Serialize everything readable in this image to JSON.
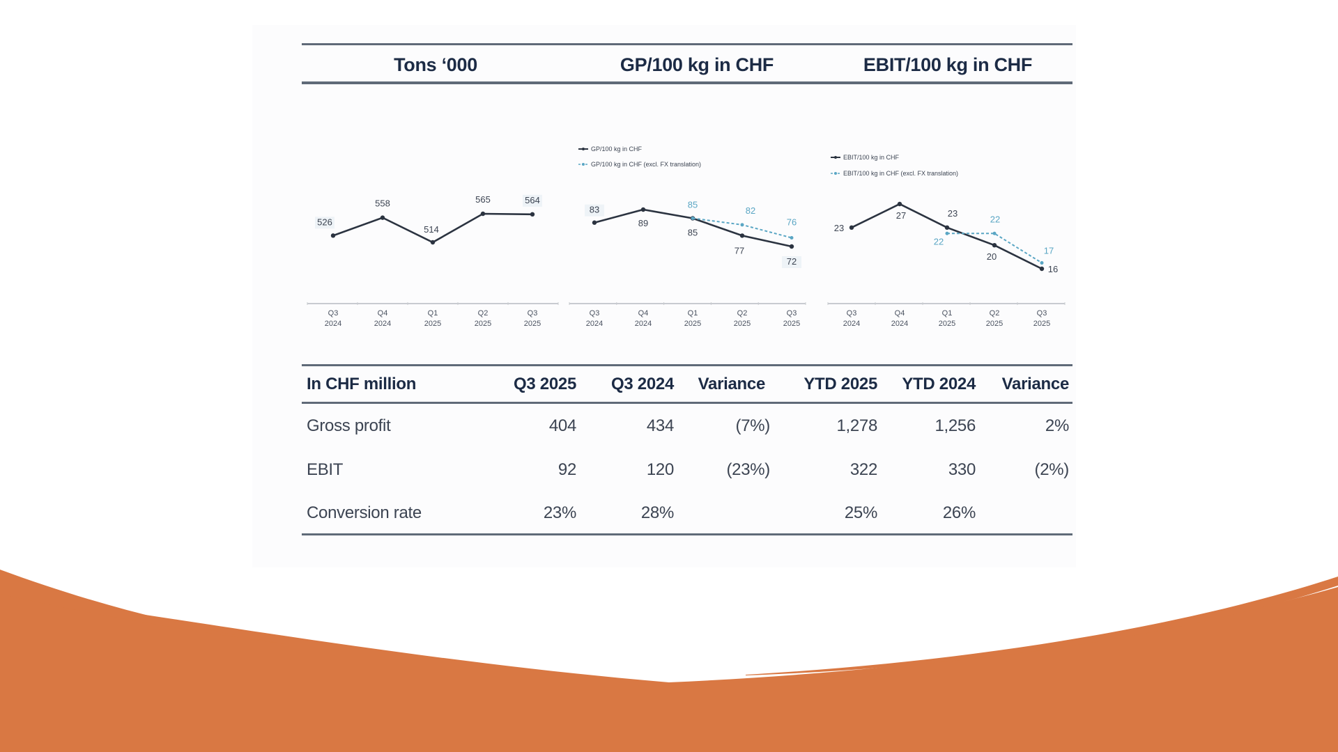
{
  "colors": {
    "accent_orange": "#d97843",
    "navy_text": "#1c2b45",
    "rule": "#5f6a78",
    "solid_series": "#2b3340",
    "dashed_series": "#5aa6c4"
  },
  "header": {
    "titles": [
      "Tons ‘000",
      "GP/100 kg in CHF",
      "EBIT/100 kg in CHF"
    ]
  },
  "chart_data": [
    {
      "type": "line",
      "title": "Tons ‘000",
      "categories": [
        [
          "Q3",
          "2024"
        ],
        [
          "Q4",
          "2024"
        ],
        [
          "Q1",
          "2025"
        ],
        [
          "Q2",
          "2025"
        ],
        [
          "Q3",
          "2025"
        ]
      ],
      "series": [
        {
          "name": "Tons ‘000",
          "style": "solid",
          "values": [
            526,
            558,
            514,
            565,
            564
          ],
          "labels": [
            "526",
            "558",
            "514",
            "565",
            "564"
          ]
        }
      ],
      "legend": []
    },
    {
      "type": "line",
      "title": "GP/100 kg in CHF",
      "categories": [
        [
          "Q3",
          "2024"
        ],
        [
          "Q4",
          "2024"
        ],
        [
          "Q1",
          "2025"
        ],
        [
          "Q2",
          "2025"
        ],
        [
          "Q3",
          "2025"
        ]
      ],
      "series": [
        {
          "name": "GP/100 kg in CHF",
          "style": "solid",
          "values": [
            83,
            89,
            85,
            77,
            72
          ],
          "labels": [
            "83",
            "89",
            "85",
            "77",
            "72"
          ]
        },
        {
          "name": "GP/100 kg in CHF (excl. FX translation)",
          "style": "dashed",
          "values": [
            null,
            null,
            85,
            82,
            76
          ],
          "labels": [
            null,
            null,
            "85",
            "82",
            "76"
          ]
        }
      ],
      "legend": [
        "GP/100 kg in CHF",
        "GP/100 kg in CHF (excl. FX translation)"
      ]
    },
    {
      "type": "line",
      "title": "EBIT/100 kg in CHF",
      "categories": [
        [
          "Q3",
          "2024"
        ],
        [
          "Q4",
          "2024"
        ],
        [
          "Q1",
          "2025"
        ],
        [
          "Q2",
          "2025"
        ],
        [
          "Q3",
          "2025"
        ]
      ],
      "series": [
        {
          "name": "EBIT/100 kg in CHF",
          "style": "solid",
          "values": [
            23,
            27,
            23,
            20,
            16
          ],
          "labels": [
            "23",
            "27",
            "23",
            "20",
            "16"
          ]
        },
        {
          "name": "EBIT/100 kg in CHF (excl. FX translation)",
          "style": "dashed",
          "values": [
            null,
            null,
            22,
            22,
            17
          ],
          "labels": [
            null,
            null,
            "22",
            "22",
            "17"
          ]
        }
      ],
      "legend": [
        "EBIT/100 kg in CHF",
        "EBIT/100 kg in CHF (excl. FX translation)"
      ]
    }
  ],
  "table": {
    "headers": [
      "In CHF million",
      "Q3 2025",
      "Q3 2024",
      "Variance",
      "YTD 2025",
      "YTD 2024",
      "Variance"
    ],
    "rows": [
      [
        "Gross profit",
        "404",
        "434",
        "(7%)",
        "1,278",
        "1,256",
        "2%"
      ],
      [
        "EBIT",
        "92",
        "120",
        "(23%)",
        "322",
        "330",
        "(2%)"
      ],
      [
        "Conversion rate",
        "23%",
        "28%",
        "",
        "25%",
        "26%",
        ""
      ]
    ]
  }
}
